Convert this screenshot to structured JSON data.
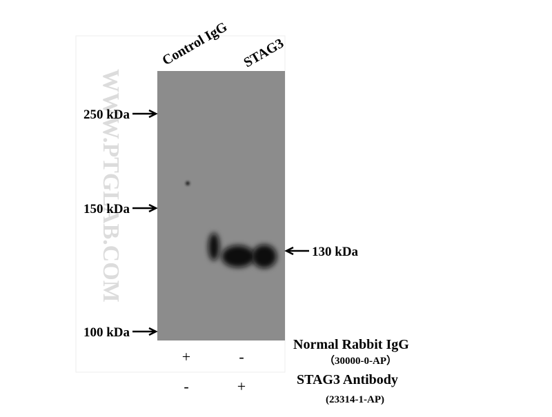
{
  "lanes": [
    "Control IgG",
    "STAG3"
  ],
  "markers": [
    "250 kDa",
    "150 kDa",
    "100 kDa"
  ],
  "band_label": "130 kDa",
  "watermark": "WWW.PTGLAB.COM",
  "conditions": [
    {
      "name": "Normal Rabbit IgG",
      "catalog": "（30000-0-AP）",
      "signs": [
        "+",
        "-"
      ]
    },
    {
      "name": "STAG3 Antibody",
      "catalog": "(23314-1-AP)",
      "signs": [
        "-",
        "+"
      ]
    }
  ]
}
